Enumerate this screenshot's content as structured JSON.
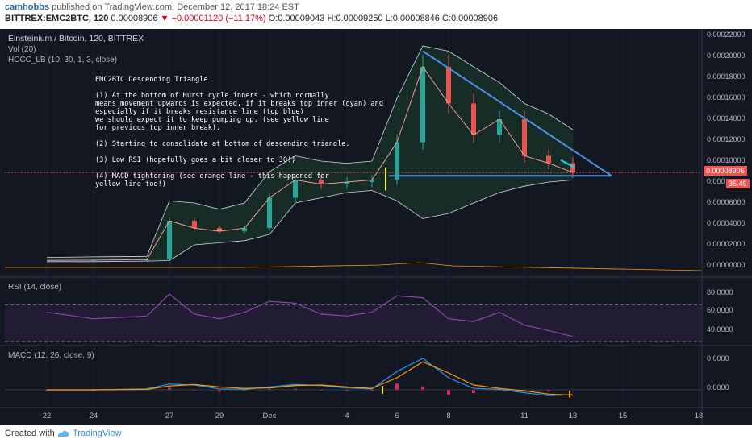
{
  "header": {
    "user": "camhobbs",
    "published": "published on TradingView.com, December 12, 2017 18:24 EST",
    "symbol": "BITTREX:EMC2BTC, 120",
    "last": "0.00008906",
    "change": "▼ −0.00001120 (−11.17%)",
    "open": "O:0.00009043",
    "high": "H:0.00009250",
    "low": "L:0.00008846",
    "close": "C:0.00008906"
  },
  "panels": {
    "main_title": "Einsteinium / Bitcoin, 120, BITTREX",
    "vol_label": "Vol (20)",
    "bb_label": "HCCC_LB (10, 30, 1, 3, close)",
    "rsi_label": "RSI (14, close)",
    "macd_label": "MACD (12, 26, close, 9)"
  },
  "annotation": {
    "lines": [
      "EMC2BTC Descending Triangle",
      "",
      "(1) At the bottom of Hurst cycle inners - which normally",
      "means movement upwards is expected, if it breaks top inner (cyan) and",
      "especially if it breaks resistance line (top blue)",
      "we should expect it to keep pumping up. (see yellow line",
      "for previous top inner break).",
      "",
      "(2) Starting to consolidate at bottom of descending triangle.",
      "",
      "(3) Low RSI (hopefully goes a bit closer to 30!)",
      "",
      "(4) MACD tightening (see orange line - this happened for",
      "yellow line too!)"
    ]
  },
  "price_tag": "0.00008906",
  "rsi_tag": "35.49",
  "price_axis": [
    "0.00022000",
    "0.00020000",
    "0.00018000",
    "0.00016000",
    "0.00014000",
    "0.00012000",
    "0.00010000",
    "0.000",
    "0.00006000",
    "0.00004000",
    "0.00002000",
    "0.00000000"
  ],
  "rsi_axis": [
    "80.0000",
    "60.0000",
    "40.0000"
  ],
  "macd_axis": [
    "0.0000",
    "0.0000"
  ],
  "footer": {
    "created": "Created with",
    "brand": "TradingView"
  },
  "colors": {
    "background": "#131722",
    "up": "#26a69a",
    "down": "#ef5350",
    "triangle": "#4a90e2",
    "cyan": "#00e5ff",
    "rsi": "#8e44ad",
    "macd": "#2196f3",
    "signal": "#ff9800",
    "hist": "#e91e63",
    "marker_yellow": "#ffeb3b",
    "marker_orange": "#ff9800"
  },
  "chart_data": {
    "type": "line",
    "x_ticks": [
      "22",
      "24",
      "27",
      "29",
      "Dec",
      "4",
      "6",
      "8",
      "11",
      "13",
      "15",
      "18"
    ],
    "price": {
      "ylim": [
        0,
        0.00022
      ],
      "x": [
        "22",
        "24",
        "26",
        "27",
        "28",
        "29",
        "30",
        "Dec",
        "2",
        "3",
        "4",
        "5",
        "6",
        "7",
        "8",
        "9",
        "10",
        "11",
        "12",
        "13"
      ],
      "close": [
        5.2e-06,
        5.5e-06,
        6e-06,
        4.3e-05,
        3.6e-05,
        3.3e-05,
        3.6e-05,
        6.5e-05,
        8.2e-05,
        7.8e-05,
        8e-05,
        8.2e-05,
        0.000118,
        0.00019,
        0.000155,
        0.000125,
        0.00014,
        0.000105,
        9.8e-05,
        8.91e-05
      ],
      "upper_band": [
        8e-06,
        8.5e-06,
        9e-06,
        6.2e-05,
        6e-05,
        5.4e-05,
        6e-05,
        9e-05,
        0.000105,
        0.0001,
        9.8e-05,
        0.0001,
        0.00016,
        0.00021,
        0.000205,
        0.00019,
        0.000175,
        0.000155,
        0.000145,
        0.00013
      ],
      "lower_band": [
        4e-06,
        4e-06,
        4.5e-06,
        5e-06,
        2e-05,
        2.2e-05,
        2.4e-05,
        3e-05,
        6e-05,
        6.5e-05,
        7e-05,
        7.2e-05,
        6.2e-05,
        4.5e-05,
        5e-05,
        6e-05,
        7e-05,
        7.6e-05,
        8e-05,
        8.2e-05
      ],
      "resistance_line": {
        "x": [
          "7",
          "14"
        ],
        "y": [
          0.000205,
          8.6e-05
        ]
      },
      "support_line": {
        "x": [
          "5",
          "14"
        ],
        "y": [
          8.6e-05,
          8.6e-05
        ]
      }
    },
    "rsi": {
      "ylim": [
        30,
        90
      ],
      "x": [
        "22",
        "24",
        "26",
        "27",
        "28",
        "29",
        "30",
        "Dec",
        "2",
        "3",
        "4",
        "5",
        "6",
        "7",
        "8",
        "9",
        "10",
        "11",
        "12",
        "13"
      ],
      "values": [
        62,
        55,
        58,
        82,
        60,
        55,
        62,
        74,
        72,
        60,
        58,
        62,
        80,
        78,
        55,
        52,
        62,
        48,
        42,
        35.49
      ],
      "levels": [
        70,
        30
      ]
    },
    "macd": {
      "x": [
        "22",
        "24",
        "26",
        "27",
        "28",
        "29",
        "30",
        "Dec",
        "2",
        "3",
        "4",
        "5",
        "6",
        "7",
        "8",
        "9",
        "10",
        "11",
        "12",
        "13"
      ],
      "macd": [
        0,
        0,
        0.2,
        1.2,
        1.0,
        0.2,
        0.1,
        0.6,
        1.1,
        0.9,
        0.4,
        0.2,
        3.8,
        6.5,
        2.5,
        0.3,
        0.1,
        -0.6,
        -1.2,
        -1.0
      ],
      "signal": [
        0,
        0,
        0.1,
        0.8,
        1.1,
        0.6,
        0.3,
        0.4,
        0.9,
        1.0,
        0.6,
        0.3,
        2.5,
        5.8,
        3.5,
        1.0,
        0.3,
        -0.2,
        -0.9,
        -1.1
      ],
      "ylim": [
        -3,
        8
      ]
    }
  }
}
